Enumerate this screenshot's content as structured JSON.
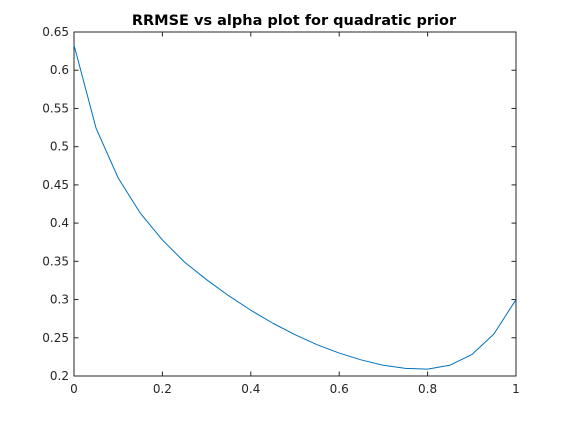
{
  "chart_data": {
    "type": "line",
    "title": "RRMSE vs alpha plot for quadratic prior",
    "xlabel": "",
    "ylabel": "",
    "xlim": [
      0,
      1
    ],
    "ylim": [
      0.2,
      0.65
    ],
    "xticks": [
      0,
      0.2,
      0.4,
      0.6,
      0.8,
      1
    ],
    "xtick_labels": [
      "0",
      "0.2",
      "0.4",
      "0.6",
      "0.8",
      "1"
    ],
    "yticks": [
      0.2,
      0.25,
      0.3,
      0.35,
      0.4,
      0.45,
      0.5,
      0.55,
      0.6,
      0.65
    ],
    "ytick_labels": [
      "0.2",
      "0.25",
      "0.3",
      "0.35",
      "0.4",
      "0.45",
      "0.5",
      "0.55",
      "0.6",
      "0.65"
    ],
    "grid": false,
    "legend": "none",
    "series": [
      {
        "color": "#0072bd",
        "x": [
          0,
          0.05,
          0.1,
          0.15,
          0.2,
          0.25,
          0.3,
          0.35,
          0.4,
          0.45,
          0.5,
          0.55,
          0.6,
          0.65,
          0.7,
          0.75,
          0.8,
          0.85,
          0.9,
          0.95,
          1
        ],
        "y": [
          0.633,
          0.524,
          0.459,
          0.413,
          0.378,
          0.349,
          0.326,
          0.305,
          0.286,
          0.269,
          0.254,
          0.241,
          0.23,
          0.221,
          0.214,
          0.21,
          0.209,
          0.214,
          0.228,
          0.255,
          0.3
        ]
      }
    ]
  }
}
